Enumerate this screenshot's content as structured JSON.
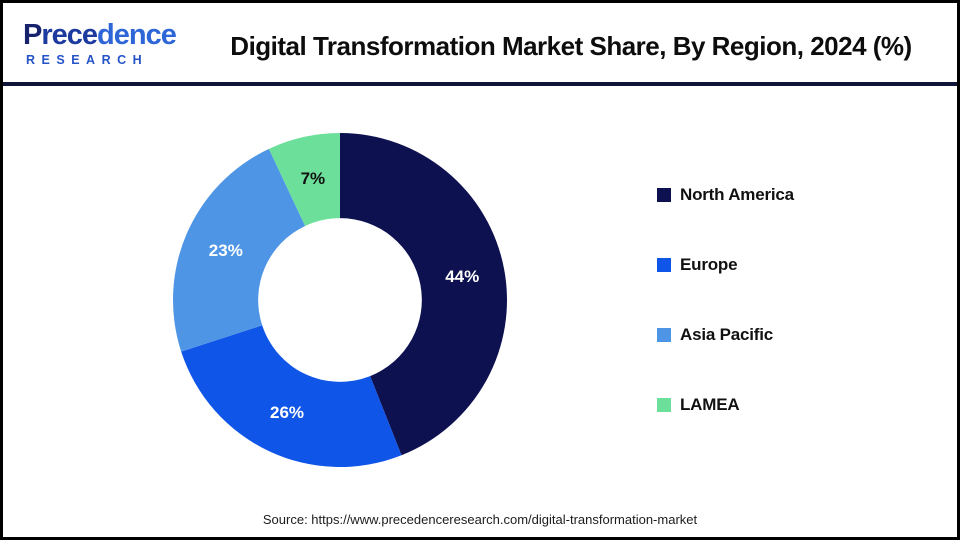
{
  "logo": {
    "name_p": "P",
    "name_mid": "rece",
    "name_end": "dence",
    "subtitle": "RESEARCH"
  },
  "chart_data": {
    "type": "pie",
    "subtype": "donut",
    "title": "Digital Transformation Market Share, By Region, 2024 (%)",
    "categories": [
      "North America",
      "Europe",
      "Asia Pacific",
      "LAMEA"
    ],
    "values": [
      44,
      26,
      23,
      7
    ],
    "unit": "%",
    "labels": [
      "44%",
      "26%",
      "23%",
      "7%"
    ],
    "colors": [
      "#0d1150",
      "#0f55e8",
      "#4e95e5",
      "#6ce09a"
    ],
    "label_text_colors": [
      "#ffffff",
      "#ffffff",
      "#ffffff",
      "#111111"
    ],
    "start_angle_deg": 0,
    "direction": "clockwise",
    "inner_radius_ratio": 0.49,
    "legend_position": "right"
  },
  "footer": {
    "source": "Source: https://www.precedenceresearch.com/digital-transformation-market"
  }
}
